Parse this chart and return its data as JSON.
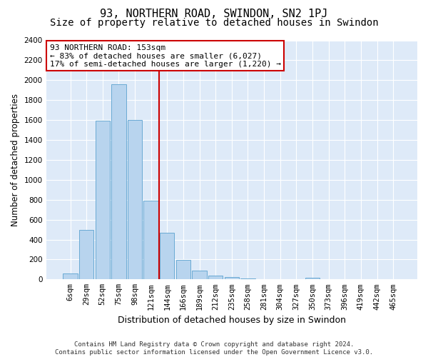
{
  "title": "93, NORTHERN ROAD, SWINDON, SN2 1PJ",
  "subtitle": "Size of property relative to detached houses in Swindon",
  "xlabel": "Distribution of detached houses by size in Swindon",
  "ylabel": "Number of detached properties",
  "bar_color": "#b8d4ee",
  "bar_edge_color": "#6aaad4",
  "background_color": "#deeaf8",
  "grid_color": "#ffffff",
  "categories": [
    "6sqm",
    "29sqm",
    "52sqm",
    "75sqm",
    "98sqm",
    "121sqm",
    "144sqm",
    "166sqm",
    "189sqm",
    "212sqm",
    "235sqm",
    "258sqm",
    "281sqm",
    "304sqm",
    "327sqm",
    "350sqm",
    "373sqm",
    "396sqm",
    "419sqm",
    "442sqm",
    "465sqm"
  ],
  "values": [
    60,
    500,
    1590,
    1960,
    1600,
    790,
    470,
    195,
    90,
    35,
    25,
    10,
    5,
    5,
    5,
    20,
    5,
    5,
    5,
    5,
    5
  ],
  "ylim": [
    0,
    2400
  ],
  "yticks": [
    0,
    200,
    400,
    600,
    800,
    1000,
    1200,
    1400,
    1600,
    1800,
    2000,
    2200,
    2400
  ],
  "vline_position": 5.5,
  "vline_color": "#cc0000",
  "annotation_line1": "93 NORTHERN ROAD: 153sqm",
  "annotation_line2": "← 83% of detached houses are smaller (6,027)",
  "annotation_line3": "17% of semi-detached houses are larger (1,220) →",
  "annotation_box_color": "#ffffff",
  "annotation_box_edge": "#cc0000",
  "footer_line1": "Contains HM Land Registry data © Crown copyright and database right 2024.",
  "footer_line2": "Contains public sector information licensed under the Open Government Licence v3.0.",
  "title_fontsize": 11,
  "subtitle_fontsize": 10,
  "xlabel_fontsize": 9,
  "ylabel_fontsize": 8.5,
  "tick_fontsize": 7.5,
  "annotation_fontsize": 8,
  "footer_fontsize": 6.5
}
